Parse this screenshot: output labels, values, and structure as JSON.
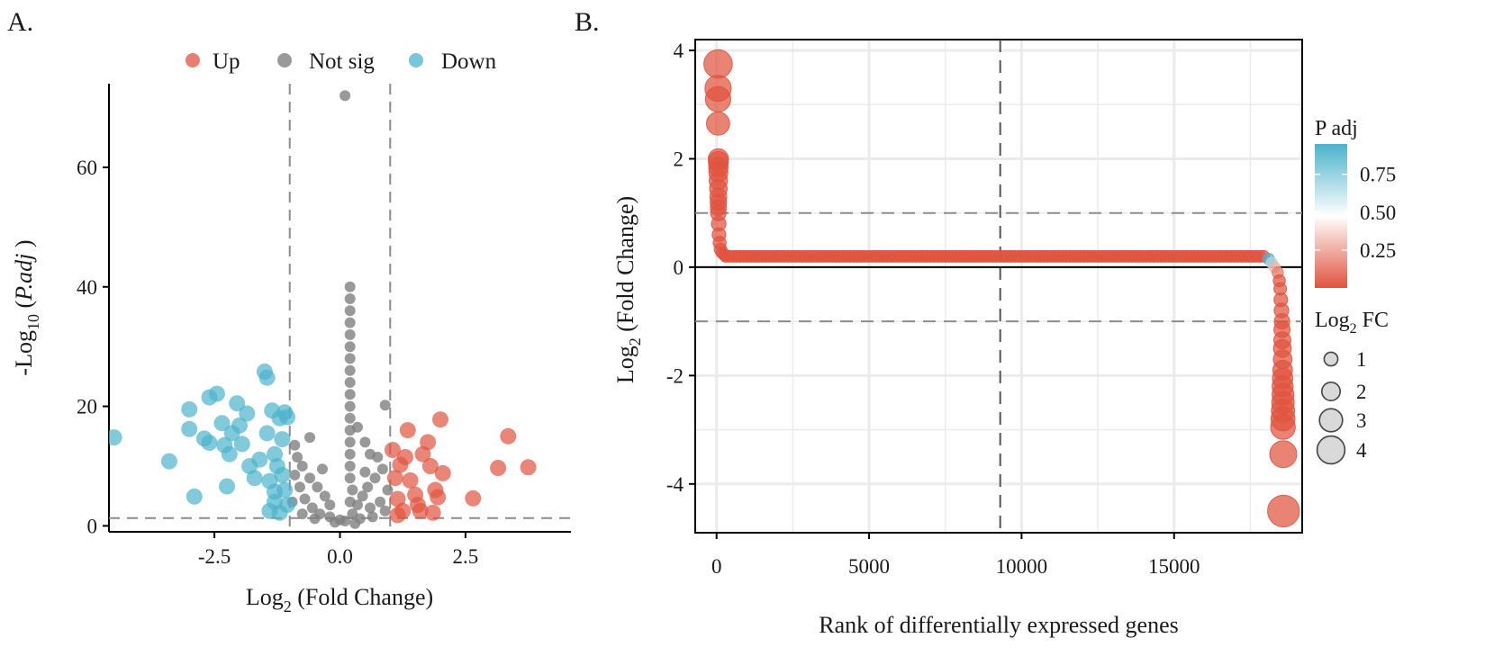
{
  "panels": {
    "a_label": "A.",
    "b_label": "B."
  },
  "colors": {
    "up": "#e0533f",
    "not_sig": "#7f7f7f",
    "down": "#4bb3cc",
    "threshold_line": "#8c8c8c",
    "grid": "#ebebeb"
  },
  "chart_data": [
    {
      "type": "scatter",
      "id": "volcano",
      "title": "",
      "xlabel_main": "Log",
      "xlabel_sub": "2",
      "xlabel_rest": " (Fold Change)",
      "ylabel_main": "-Log",
      "ylabel_sub": "10",
      "ylabel_open": " (",
      "ylabel_italic": "P.adj",
      "ylabel_close": " )",
      "xlim": [
        -4.6,
        4.6
      ],
      "ylim": [
        -1,
        74
      ],
      "x_ticks": [
        -2.5,
        0.0,
        2.5
      ],
      "x_tick_labels": [
        "-2.5",
        "0.0",
        "2.5"
      ],
      "y_ticks": [
        0,
        20,
        40,
        60
      ],
      "y_tick_labels": [
        "0",
        "20",
        "40",
        "60"
      ],
      "thresholds": {
        "x": [
          -1,
          1
        ],
        "y": 1.3
      },
      "legend": {
        "position": "top",
        "entries": [
          {
            "key": "up",
            "label": "Up"
          },
          {
            "key": "not_sig",
            "label": "Not sig"
          },
          {
            "key": "down",
            "label": "Down"
          }
        ]
      },
      "series": [
        {
          "name": "Down",
          "color_key": "down",
          "points": [
            [
              -4.5,
              14.8
            ],
            [
              -3.4,
              10.8
            ],
            [
              -3.0,
              19.5
            ],
            [
              -3.0,
              16.2
            ],
            [
              -2.9,
              4.9
            ],
            [
              -2.7,
              14.6
            ],
            [
              -2.6,
              21.5
            ],
            [
              -2.45,
              22.1
            ],
            [
              -2.6,
              13.9
            ],
            [
              -2.35,
              17.2
            ],
            [
              -2.3,
              13.5
            ],
            [
              -2.25,
              6.6
            ],
            [
              -2.2,
              12.0
            ],
            [
              -2.15,
              15.5
            ],
            [
              -2.05,
              20.5
            ],
            [
              -2.0,
              16.8
            ],
            [
              -1.95,
              13.7
            ],
            [
              -1.85,
              18.8
            ],
            [
              -1.8,
              10.0
            ],
            [
              -1.7,
              8.0
            ],
            [
              -1.6,
              11.1
            ],
            [
              -1.5,
              25.8
            ],
            [
              -1.45,
              24.8
            ],
            [
              -1.45,
              15.5
            ],
            [
              -1.4,
              7.5
            ],
            [
              -1.35,
              19.3
            ],
            [
              -1.3,
              12.0
            ],
            [
              -1.25,
              10.0
            ],
            [
              -1.2,
              18.0
            ],
            [
              -1.15,
              8.5
            ],
            [
              -1.1,
              19.0
            ],
            [
              -1.05,
              18.2
            ],
            [
              -1.1,
              6.0
            ],
            [
              -1.3,
              4.0
            ],
            [
              -1.4,
              2.5
            ],
            [
              -1.2,
              2.2
            ],
            [
              -1.05,
              3.5
            ],
            [
              -1.3,
              5.7
            ],
            [
              -1.15,
              14.5
            ]
          ]
        },
        {
          "name": "Up",
          "color_key": "up",
          "points": [
            [
              1.05,
              12.7
            ],
            [
              1.1,
              8.0
            ],
            [
              1.15,
              4.5
            ],
            [
              1.2,
              10.2
            ],
            [
              1.25,
              2.5
            ],
            [
              1.3,
              11.5
            ],
            [
              1.35,
              16.0
            ],
            [
              1.4,
              7.6
            ],
            [
              1.5,
              5.2
            ],
            [
              1.55,
              3.5
            ],
            [
              1.6,
              2.5
            ],
            [
              1.65,
              12.0
            ],
            [
              1.75,
              14.0
            ],
            [
              1.8,
              10.0
            ],
            [
              1.9,
              6.0
            ],
            [
              1.95,
              4.8
            ],
            [
              2.0,
              17.8
            ],
            [
              2.05,
              8.8
            ],
            [
              1.85,
              2.2
            ],
            [
              2.65,
              4.6
            ],
            [
              3.15,
              9.7
            ],
            [
              3.35,
              15.0
            ],
            [
              3.75,
              9.8
            ],
            [
              1.15,
              1.8
            ]
          ]
        },
        {
          "name": "Not sig",
          "color_key": "not_sig",
          "points": [
            [
              0.1,
              72.0
            ],
            [
              0.2,
              40.0
            ],
            [
              0.2,
              38.0
            ],
            [
              0.2,
              36.0
            ],
            [
              0.2,
              34.0
            ],
            [
              0.2,
              32.0
            ],
            [
              0.2,
              30.0
            ],
            [
              0.2,
              28.0
            ],
            [
              0.2,
              26.0
            ],
            [
              0.2,
              24.0
            ],
            [
              0.2,
              22.0
            ],
            [
              0.2,
              20.0
            ],
            [
              0.2,
              18.0
            ],
            [
              0.2,
              16.0
            ],
            [
              0.2,
              14.0
            ],
            [
              0.2,
              12.0
            ],
            [
              0.2,
              10.0
            ],
            [
              0.2,
              8.0
            ],
            [
              0.25,
              6.0
            ],
            [
              0.2,
              4.0
            ],
            [
              0.25,
              2.0
            ],
            [
              0.9,
              20.2
            ],
            [
              -0.9,
              13.5
            ],
            [
              -0.6,
              14.8
            ],
            [
              0.35,
              16.5
            ],
            [
              0.5,
              14.0
            ],
            [
              0.6,
              12.0
            ],
            [
              0.75,
              11.5
            ],
            [
              0.85,
              9.5
            ],
            [
              0.7,
              8.0
            ],
            [
              0.55,
              6.5
            ],
            [
              0.45,
              5.0
            ],
            [
              0.35,
              3.5
            ],
            [
              0.6,
              3.0
            ],
            [
              0.8,
              4.0
            ],
            [
              0.9,
              2.5
            ],
            [
              -0.2,
              3.5
            ],
            [
              -0.3,
              5.0
            ],
            [
              -0.45,
              6.5
            ],
            [
              -0.6,
              8.0
            ],
            [
              -0.75,
              10.0
            ],
            [
              -0.85,
              11.5
            ],
            [
              -0.9,
              8.5
            ],
            [
              -0.8,
              6.5
            ],
            [
              -0.7,
              4.5
            ],
            [
              -0.55,
              3.0
            ],
            [
              -0.4,
              2.0
            ],
            [
              -0.2,
              1.5
            ],
            [
              0.0,
              1.0
            ],
            [
              0.1,
              0.8
            ],
            [
              -0.1,
              0.6
            ],
            [
              0.4,
              1.2
            ],
            [
              -0.5,
              1.2
            ],
            [
              0.65,
              1.5
            ],
            [
              -0.75,
              2.0
            ],
            [
              0.5,
              9.0
            ],
            [
              -0.35,
              9.5
            ],
            [
              0.95,
              6.0
            ],
            [
              -0.95,
              4.0
            ],
            [
              0.3,
              0.4
            ]
          ]
        }
      ]
    },
    {
      "type": "scatter",
      "id": "rank",
      "title": "",
      "xlabel": "Rank of differentially expressed genes",
      "ylabel_main": "Log",
      "ylabel_sub": "2",
      "ylabel_rest": " (Fold Change)",
      "xlim": [
        -700,
        19200
      ],
      "ylim": [
        -4.9,
        4.2
      ],
      "x_ticks": [
        0,
        5000,
        10000,
        15000
      ],
      "x_tick_labels": [
        "0",
        "5000",
        "10000",
        "15000"
      ],
      "y_ticks": [
        -4,
        -2,
        0,
        2,
        4
      ],
      "y_tick_labels": [
        "-4",
        "-2",
        "0",
        "2",
        "4"
      ],
      "thresholds": {
        "y": [
          -1,
          1
        ],
        "x": 9300
      },
      "color_legend": {
        "title": "P adj",
        "ticks": [
          0.75,
          0.5,
          0.25
        ],
        "tick_labels": [
          "0.75",
          "0.50",
          "0.25"
        ],
        "range": [
          0.0,
          0.95
        ]
      },
      "size_legend": {
        "title_main": "Log",
        "title_sub": "2",
        "title_rest": " FC",
        "values": [
          1,
          2,
          3,
          4
        ],
        "labels": [
          "1",
          "2",
          "3",
          "4"
        ]
      },
      "head_points": [
        [
          50,
          3.75
        ],
        [
          50,
          3.3
        ],
        [
          50,
          3.1
        ],
        [
          50,
          2.65
        ],
        [
          60,
          2.0
        ],
        [
          60,
          1.95
        ],
        [
          60,
          1.85
        ],
        [
          60,
          1.75
        ],
        [
          60,
          1.6
        ],
        [
          60,
          1.45
        ],
        [
          60,
          1.3
        ],
        [
          60,
          1.2
        ],
        [
          60,
          1.1
        ],
        [
          60,
          1.0
        ],
        [
          70,
          0.8
        ],
        [
          80,
          0.6
        ],
        [
          100,
          0.45
        ],
        [
          130,
          0.33
        ],
        [
          180,
          0.27
        ],
        [
          260,
          0.23
        ]
      ],
      "plateau": {
        "x_start": 300,
        "x_end": 18000,
        "step": 120,
        "y": 0.2
      },
      "tail_points": [
        [
          18100,
          0.15
        ],
        [
          18200,
          0.08
        ],
        [
          18300,
          0.0
        ],
        [
          18400,
          -0.1
        ],
        [
          18450,
          -0.25
        ],
        [
          18480,
          -0.4
        ],
        [
          18500,
          -0.6
        ],
        [
          18520,
          -0.8
        ],
        [
          18540,
          -1.0
        ],
        [
          18540,
          -1.15
        ],
        [
          18550,
          -1.35
        ],
        [
          18550,
          -1.5
        ],
        [
          18560,
          -1.7
        ],
        [
          18560,
          -1.9
        ],
        [
          18560,
          -2.05
        ],
        [
          18560,
          -2.2
        ],
        [
          18570,
          -2.35
        ],
        [
          18570,
          -2.5
        ],
        [
          18570,
          -2.65
        ],
        [
          18570,
          -2.8
        ],
        [
          18570,
          -2.95
        ],
        [
          18580,
          -3.45
        ],
        [
          18590,
          -4.5
        ]
      ],
      "tail_padj_start": [
        0.8,
        0.55,
        0.35,
        0.2,
        0.12
      ]
    }
  ]
}
